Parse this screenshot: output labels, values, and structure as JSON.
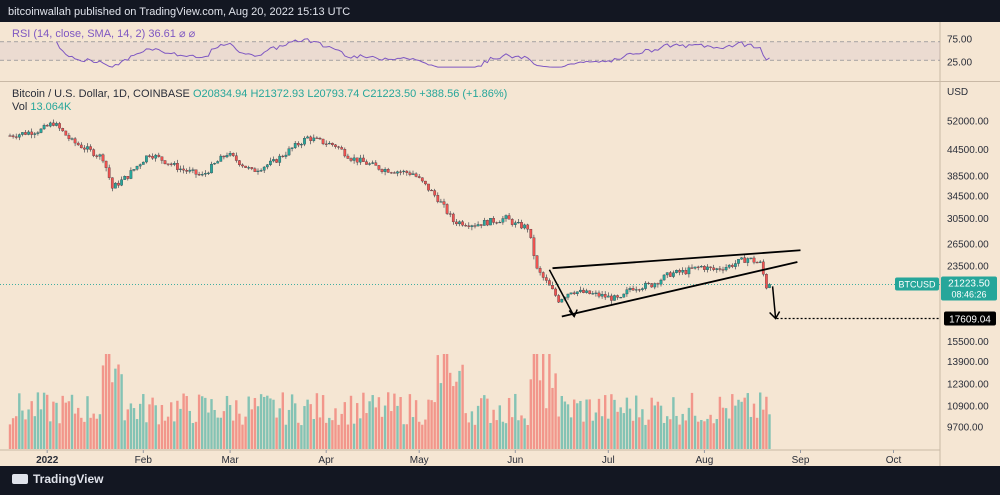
{
  "publisher_line": "bitcoinwallah published on TradingView.com, Aug 20, 2022 15:13 UTC",
  "brand": "TradingView",
  "rsi": {
    "legend": "RSI (14, close, SMA, 14, 2)",
    "value": "36.61",
    "extra": "⌀  ⌀",
    "ticks": [
      "75.00",
      "25.00"
    ],
    "levels": [
      70,
      30
    ]
  },
  "main": {
    "symbol": "Bitcoin / U.S. Dollar, 1D, COINBASE",
    "ohlc": "O20834.94  H21372.93  L20793.74  C21223.50  +388.56 (+1.86%)",
    "vol_label": "Vol",
    "vol_value": "13.064K",
    "currency": "USD",
    "price_ticks": [
      "52000.00",
      "44500.00",
      "38500.00",
      "34500.00",
      "30500.00",
      "26500.00",
      "23500.00",
      "15500.00",
      "13900.00",
      "12300.00",
      "10900.00",
      "9700.00"
    ],
    "last_price_label": "BTCUSD",
    "last_price": "21223.50",
    "countdown": "08:46:26",
    "target_price": "17609.04",
    "x_ticks": [
      "2022",
      "Feb",
      "Mar",
      "Apr",
      "May",
      "Jun",
      "Jul",
      "Aug",
      "Sep",
      "Oct"
    ]
  },
  "colors": {
    "background": "#f5e6d3",
    "up": "#26a69a",
    "down": "#ef5350",
    "rsi_line": "#7e57c2",
    "header_bg": "#131722"
  },
  "chart_data": {
    "type": "candlestick",
    "title": "Bitcoin / U.S. Dollar, 1D, COINBASE",
    "y_scale": "log",
    "ylim": [
      8700,
      60000
    ],
    "x_start": "2021-12-20",
    "price_path": [
      [
        0,
        48000
      ],
      [
        10,
        49500
      ],
      [
        14,
        51500
      ],
      [
        20,
        46500
      ],
      [
        30,
        42500
      ],
      [
        33,
        36000
      ],
      [
        38,
        38500
      ],
      [
        45,
        43500
      ],
      [
        55,
        40000
      ],
      [
        62,
        38500
      ],
      [
        70,
        43500
      ],
      [
        78,
        39500
      ],
      [
        85,
        41500
      ],
      [
        96,
        47500
      ],
      [
        100,
        46500
      ],
      [
        105,
        45500
      ],
      [
        110,
        42500
      ],
      [
        120,
        40000
      ],
      [
        130,
        39000
      ],
      [
        138,
        34000
      ],
      [
        143,
        30000
      ],
      [
        150,
        29500
      ],
      [
        160,
        30500
      ],
      [
        163,
        29500
      ],
      [
        167,
        29000
      ],
      [
        170,
        23000
      ],
      [
        177,
        19500
      ],
      [
        181,
        20500
      ],
      [
        190,
        20000
      ],
      [
        197,
        19500
      ],
      [
        200,
        20800
      ],
      [
        207,
        21200
      ],
      [
        213,
        22500
      ],
      [
        218,
        22800
      ],
      [
        223,
        23400
      ],
      [
        227,
        23000
      ],
      [
        232,
        23500
      ],
      [
        238,
        24500
      ],
      [
        242,
        23800
      ],
      [
        244,
        21000
      ],
      [
        245,
        21223.5
      ]
    ],
    "last_close": 21223.5,
    "ohlc_last": {
      "open": 20834.94,
      "high": 21372.93,
      "low": 20793.74,
      "close": 21223.5,
      "change": 388.56,
      "change_pct": 1.86
    },
    "pattern": "rising wedge",
    "wedge_upper": [
      [
        175,
        23200
      ],
      [
        255,
        25600
      ]
    ],
    "wedge_lower": [
      [
        178,
        17800
      ],
      [
        254,
        24000
      ]
    ],
    "projection_target": 17609.04,
    "volume_unit": "K",
    "volume_last": 13.064
  }
}
